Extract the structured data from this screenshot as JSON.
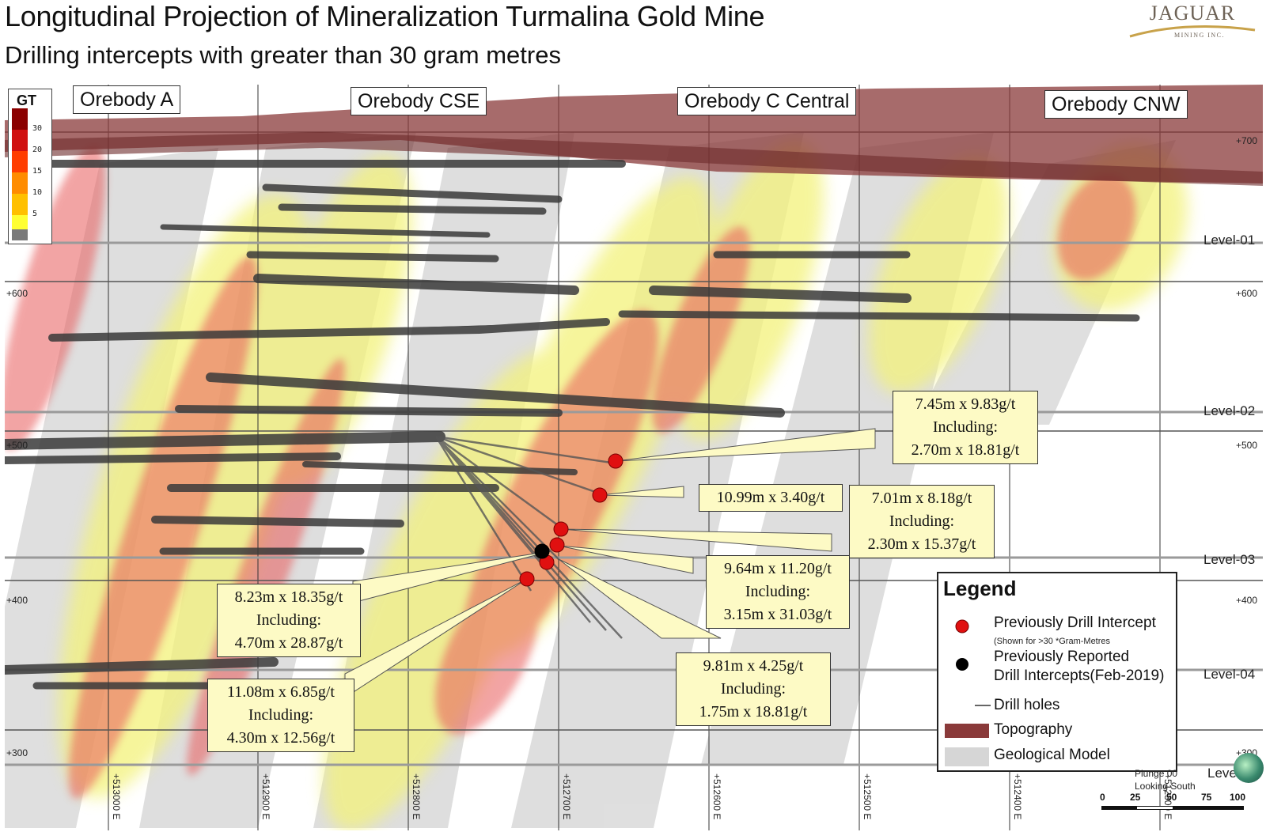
{
  "title": "Longitudinal Projection of Mineralization Turmalina Gold Mine",
  "subtitle": "Drilling intercepts with greater than 30 gram metres",
  "logo": {
    "word": "JAGUAR",
    "sub": "MINING INC."
  },
  "gt_legend": {
    "title": "GT",
    "ticks": [
      "30",
      "20",
      "15",
      "10",
      "5"
    ],
    "colors": [
      "#8b0000",
      "#d01010",
      "#ff3d00",
      "#ff8c00",
      "#ffc000",
      "#ffff33",
      "#7a7a7a"
    ]
  },
  "orebodies": [
    "Orebody A",
    "Orebody CSE",
    "Orebody C Central",
    "Orebody CNW"
  ],
  "levels": [
    "Level-01",
    "Level-02",
    "Level-03",
    "Level-04",
    "Level-05"
  ],
  "elevations": {
    "left": [
      "+600",
      "+500",
      "+400",
      "+300"
    ],
    "right": [
      "+700",
      "+600",
      "+500",
      "+400",
      "+300"
    ]
  },
  "eastings": [
    "+513000 E",
    "+512900 E",
    "+512800 E",
    "+512700 E",
    "+512600 E",
    "+512500 E",
    "+512400 E",
    "+512300 E"
  ],
  "callouts": [
    {
      "lines": [
        "7.45m x 9.83g/t",
        "Including:",
        "2.70m x 18.81g/t"
      ]
    },
    {
      "lines": [
        "10.99m x 3.40g/t"
      ]
    },
    {
      "lines": [
        "7.01m x 8.18g/t",
        "Including:",
        "2.30m x 15.37g/t"
      ]
    },
    {
      "lines": [
        "9.64m x 11.20g/t",
        "Including:",
        "3.15m x 31.03g/t"
      ]
    },
    {
      "lines": [
        "8.23m x 18.35g/t",
        "Including:",
        "4.70m x 28.87g/t"
      ]
    },
    {
      "lines": [
        "11.08m x 6.85g/t",
        "Including:",
        "4.30m x 12.56g/t"
      ]
    },
    {
      "lines": [
        "9.81m x 4.25g/t",
        "Including:",
        "1.75m x 18.81g/t"
      ]
    }
  ],
  "legend": {
    "title": "Legend",
    "red_point": "Previously Drill Intercept",
    "red_note": "(Shown for >30 *Gram-Metres",
    "black_point_1": "Previously Reported",
    "black_point_2": "Drill Intercepts(Feb-2019)",
    "drill_holes": "Drill holes",
    "topography": "Topography",
    "geological_model": "Geological Model"
  },
  "plunge": [
    "Plunge 00",
    "Looking South"
  ],
  "scale": [
    "0",
    "25",
    "50",
    "75",
    "100"
  ],
  "colors": {
    "topography": "#8a3a3a",
    "geological_model": "#d6d6d6",
    "intercept_red": "#e01010",
    "callout_fill": "#fdfac5"
  }
}
